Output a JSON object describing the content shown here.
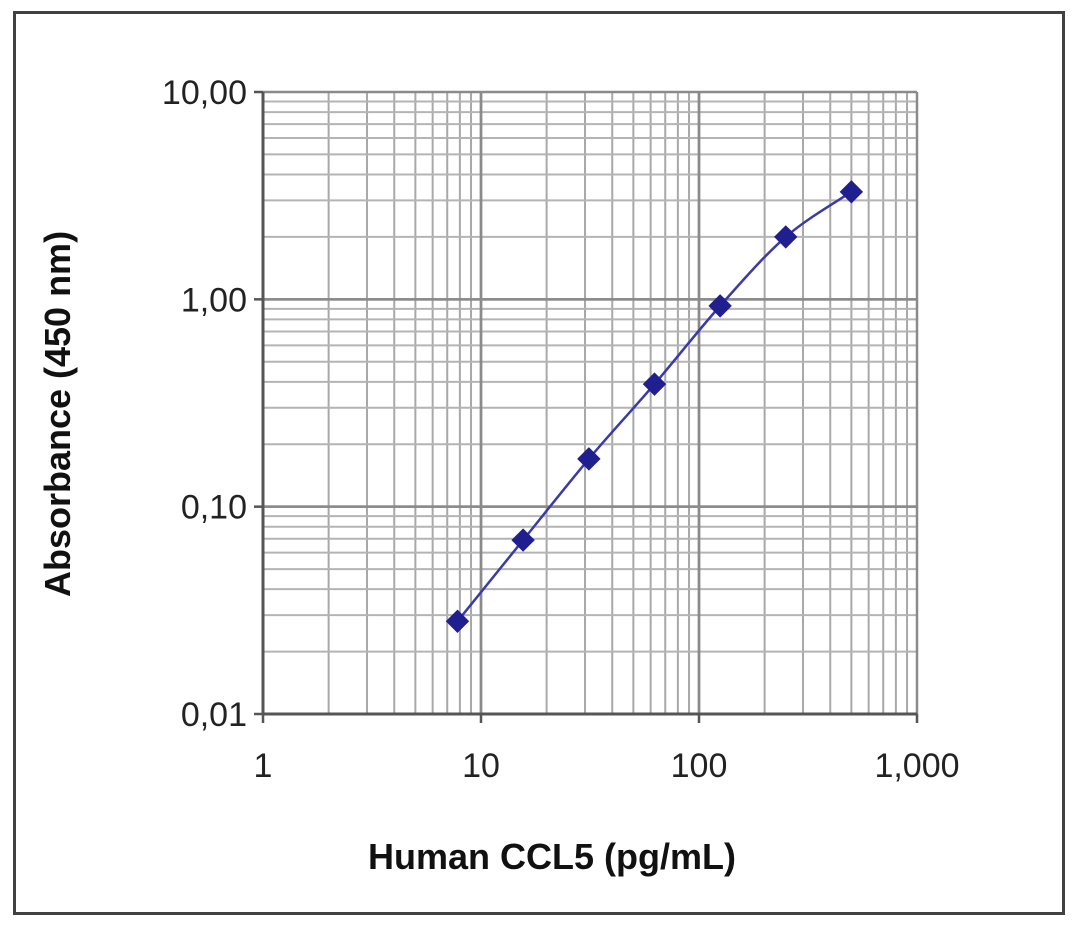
{
  "chart_data": {
    "type": "scatter",
    "title": "",
    "xlabel": "Human CCL5 (pg/mL)",
    "ylabel": "Absorbance (450 nm)",
    "x_scale": "log",
    "y_scale": "log",
    "xlim": [
      1,
      1000
    ],
    "ylim": [
      0.01,
      10
    ],
    "x_tick_labels": [
      "1",
      "10",
      "100",
      "1,000"
    ],
    "y_tick_labels": [
      "10,00",
      "1,00",
      "0,10",
      "0,01"
    ],
    "grid": true,
    "legend": "none",
    "series": [
      {
        "marker": "diamond",
        "line": "smooth",
        "color": "#1f1f8f",
        "x": [
          7.8,
          15.6,
          31.25,
          62.5,
          125,
          250,
          500
        ],
        "y": [
          0.028,
          0.069,
          0.17,
          0.39,
          0.93,
          2.0,
          3.3
        ]
      }
    ]
  }
}
